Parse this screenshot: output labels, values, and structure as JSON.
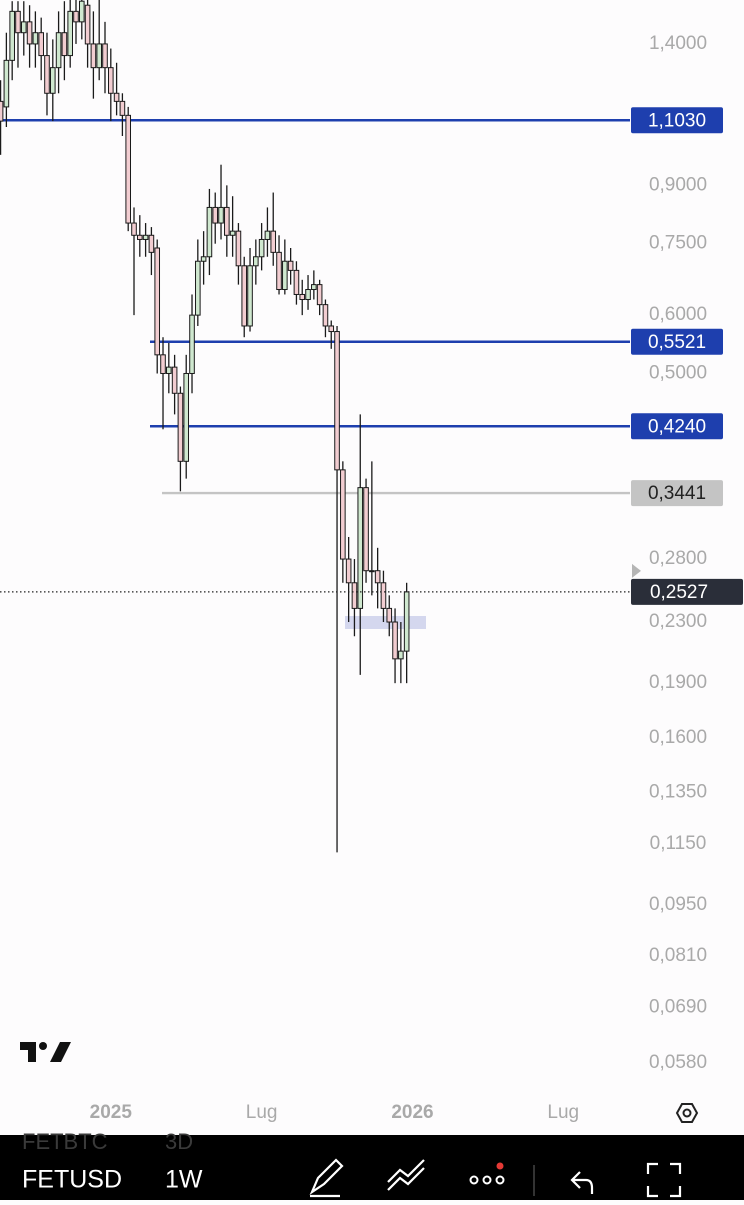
{
  "chart_data": {
    "type": "candlestick",
    "log_scale": true,
    "up_color": "#cfe8cf",
    "down_color": "#f2cdd1",
    "x": [
      -19,
      -18,
      -17,
      -16,
      -15,
      -14,
      -13,
      -12,
      -11,
      -10,
      -9,
      -8,
      -7,
      -6,
      -5,
      -4,
      -3,
      -2,
      -1,
      0,
      1,
      2,
      3,
      4,
      5,
      6,
      7,
      8,
      9,
      10,
      11,
      12,
      13,
      14,
      15,
      16,
      17,
      18,
      19,
      20,
      21,
      22,
      23,
      24,
      25,
      26,
      27,
      28,
      29,
      30,
      31,
      32,
      33,
      34,
      35,
      36,
      37,
      38,
      39,
      40,
      41,
      42,
      43,
      44,
      45,
      46,
      47,
      48,
      49,
      50,
      51
    ],
    "open": [
      1.17,
      1.15,
      1.33,
      1.55,
      1.45,
      1.5,
      1.4,
      1.45,
      1.35,
      1.2,
      1.3,
      1.45,
      1.35,
      1.55,
      1.5,
      1.58,
      1.4,
      1.3,
      1.4,
      1.3,
      1.2,
      1.17,
      1.12,
      0.8,
      0.77,
      0.76,
      0.77,
      0.74,
      0.53,
      0.5,
      0.51,
      0.47,
      0.38,
      0.5,
      0.6,
      0.71,
      0.72,
      0.84,
      0.8,
      0.84,
      0.77,
      0.78,
      0.7,
      0.58,
      0.7,
      0.72,
      0.76,
      0.78,
      0.73,
      0.65,
      0.71,
      0.69,
      0.64,
      0.63,
      0.65,
      0.66,
      0.62,
      0.58,
      0.57,
      0.37,
      0.28,
      0.26,
      0.24,
      0.35,
      0.27,
      0.27,
      0.26,
      0.24,
      0.23,
      0.205,
      0.21
    ],
    "high": [
      1.25,
      1.45,
      1.6,
      1.6,
      1.6,
      1.58,
      1.55,
      1.52,
      1.45,
      1.42,
      1.55,
      1.6,
      1.62,
      1.62,
      1.61,
      1.61,
      1.55,
      1.61,
      1.5,
      1.38,
      1.32,
      1.2,
      1.15,
      0.84,
      0.82,
      0.8,
      0.79,
      0.76,
      0.56,
      0.55,
      0.53,
      0.48,
      0.53,
      0.64,
      0.76,
      0.78,
      0.89,
      0.88,
      0.96,
      0.9,
      0.87,
      0.8,
      0.72,
      0.74,
      0.76,
      0.8,
      0.84,
      0.88,
      0.77,
      0.76,
      0.74,
      0.71,
      0.67,
      0.68,
      0.69,
      0.67,
      0.63,
      0.59,
      0.58,
      0.38,
      0.3,
      0.28,
      0.44,
      0.36,
      0.38,
      0.29,
      0.27,
      0.25,
      0.24,
      0.23,
      0.26
    ],
    "low": [
      0.99,
      1.08,
      1.25,
      1.3,
      1.35,
      1.3,
      1.3,
      1.25,
      1.12,
      1.1,
      1.2,
      1.25,
      1.3,
      1.4,
      1.42,
      1.3,
      1.18,
      1.25,
      1.2,
      1.1,
      1.12,
      1.05,
      0.78,
      0.6,
      0.72,
      0.72,
      0.68,
      0.5,
      0.42,
      0.47,
      0.44,
      0.346,
      0.36,
      0.47,
      0.58,
      0.66,
      0.68,
      0.75,
      0.76,
      0.72,
      0.72,
      0.66,
      0.56,
      0.57,
      0.66,
      0.69,
      0.72,
      0.7,
      0.64,
      0.64,
      0.66,
      0.62,
      0.6,
      0.61,
      0.63,
      0.6,
      0.56,
      0.54,
      0.112,
      0.26,
      0.23,
      0.22,
      0.195,
      0.26,
      0.25,
      0.24,
      0.23,
      0.22,
      0.19,
      0.19,
      0.19
    ],
    "close": [
      1.1,
      1.33,
      1.55,
      1.45,
      1.5,
      1.4,
      1.45,
      1.35,
      1.2,
      1.3,
      1.45,
      1.35,
      1.55,
      1.5,
      1.6,
      1.4,
      1.3,
      1.4,
      1.3,
      1.2,
      1.17,
      1.12,
      0.8,
      0.77,
      0.76,
      0.77,
      0.73,
      0.53,
      0.5,
      0.51,
      0.47,
      0.38,
      0.5,
      0.6,
      0.71,
      0.72,
      0.84,
      0.8,
      0.84,
      0.77,
      0.78,
      0.7,
      0.58,
      0.7,
      0.72,
      0.76,
      0.78,
      0.73,
      0.65,
      0.71,
      0.69,
      0.64,
      0.63,
      0.65,
      0.66,
      0.62,
      0.58,
      0.57,
      0.37,
      0.28,
      0.26,
      0.24,
      0.35,
      0.27,
      0.27,
      0.26,
      0.24,
      0.23,
      0.205,
      0.21,
      0.2527
    ],
    "xlim": [
      -19.1,
      89.5
    ],
    "xticks": [
      {
        "value": 0,
        "label": "2025"
      },
      {
        "value": 26,
        "label": "Lug"
      },
      {
        "value": 52,
        "label": "2026"
      },
      {
        "value": 78,
        "label": "Lug"
      }
    ],
    "ylim": [
      0.0533,
      1.606
    ],
    "yticks": [
      {
        "value": 1.4,
        "label": "1,4000"
      },
      {
        "value": 0.9,
        "label": "0,9000"
      },
      {
        "value": 0.75,
        "label": "0,7500"
      },
      {
        "value": 0.6,
        "label": "0,6000"
      },
      {
        "value": 0.5,
        "label": "0,5000"
      },
      {
        "value": 0.28,
        "label": "0,2800"
      },
      {
        "value": 0.23,
        "label": "0,2300"
      },
      {
        "value": 0.19,
        "label": "0,1900"
      },
      {
        "value": 0.16,
        "label": "0,1600"
      },
      {
        "value": 0.135,
        "label": "0,1350"
      },
      {
        "value": 0.115,
        "label": "0,1150"
      },
      {
        "value": 0.095,
        "label": "0,0950"
      },
      {
        "value": 0.081,
        "label": "0,0810"
      },
      {
        "value": 0.069,
        "label": "0,0690"
      },
      {
        "value": 0.058,
        "label": "0,0580"
      }
    ],
    "levels": [
      {
        "value": 1.103,
        "label": "1,1030",
        "color": "#1e3fae"
      },
      {
        "value": 0.5521,
        "label": "0,5521",
        "color": "#1e3fae"
      },
      {
        "value": 0.424,
        "label": "0,4240",
        "color": "#1e3fae"
      },
      {
        "value": 0.3441,
        "label": "0,3441",
        "color": "#c4c4c4"
      }
    ],
    "last_price": {
      "value": 0.2527,
      "label": "0,2527",
      "color": "#2a2e39"
    }
  },
  "toolbar": {
    "symbols": [
      {
        "symbol": "FETBTC",
        "interval": "3D"
      },
      {
        "symbol": "FETUSD",
        "interval": "1W"
      }
    ]
  }
}
